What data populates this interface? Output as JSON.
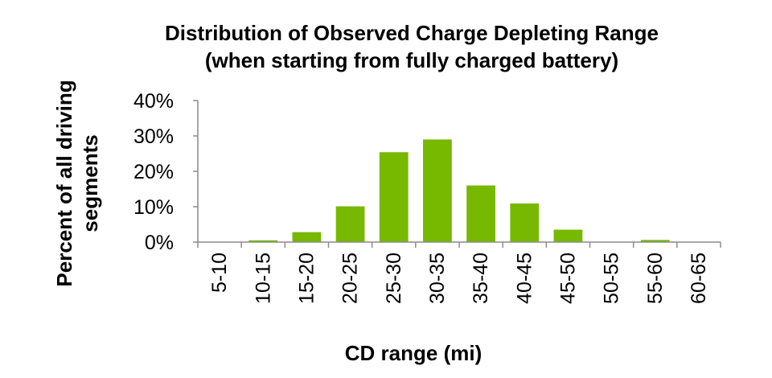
{
  "chart_data": {
    "type": "bar",
    "title": "Distribution of Observed Charge Depleting Range",
    "subtitle": "(when starting from fully charged battery)",
    "xlabel": "CD range (mi)",
    "ylabel": "Percent of all driving segments",
    "ylabel_lines": [
      "Percent of all driving",
      "segments"
    ],
    "categories": [
      "5-10",
      "10-15",
      "15-20",
      "20-25",
      "25-30",
      "30-35",
      "35-40",
      "40-45",
      "45-50",
      "50-55",
      "55-60",
      "60-65"
    ],
    "values": [
      0,
      0.5,
      2.8,
      10.1,
      25.4,
      29.0,
      16.0,
      10.9,
      3.5,
      0,
      0.6,
      0
    ],
    "ylim": [
      0,
      40
    ],
    "y_ticks": [
      "0%",
      "10%",
      "20%",
      "30%",
      "40%"
    ],
    "y_tick_values": [
      0,
      10,
      20,
      30,
      40
    ],
    "grid": false,
    "legend": "none",
    "bar_color": "#77b800",
    "axis_color": "#8c8c8c"
  }
}
